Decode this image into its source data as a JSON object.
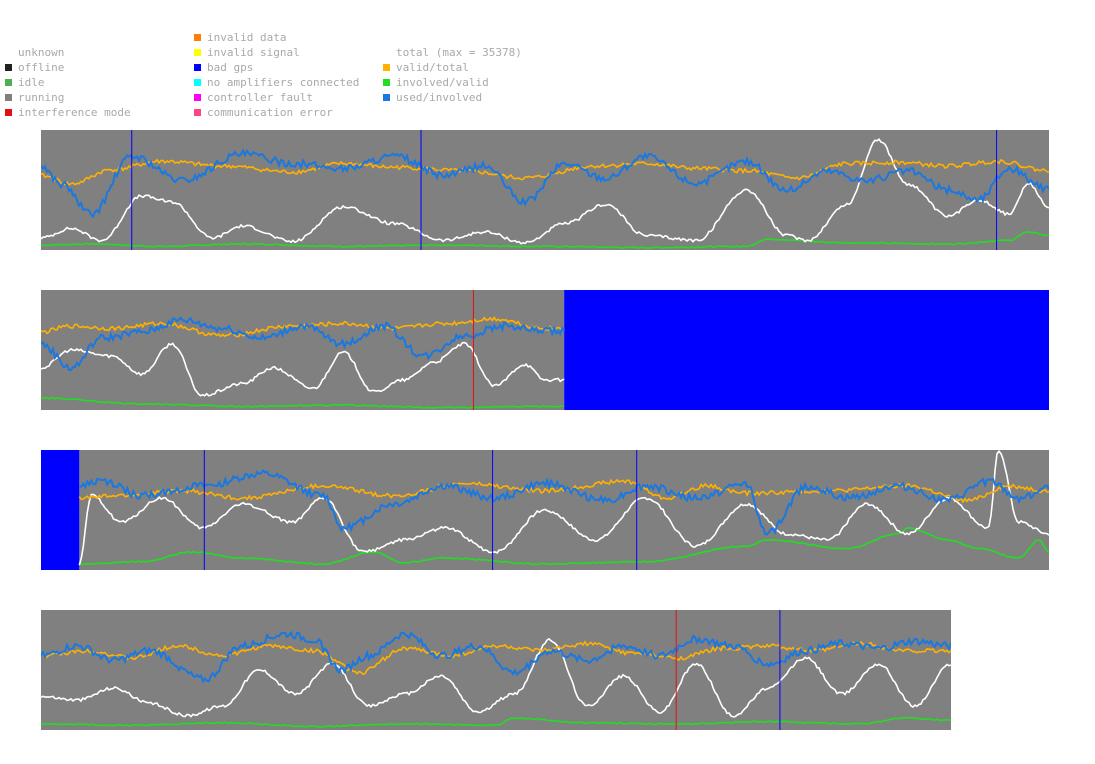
{
  "legend": {
    "status": [
      {
        "label": "unknown",
        "color": ""
      },
      {
        "label": "offline",
        "color": "#222222"
      },
      {
        "label": "idle",
        "color": "#4caf50"
      },
      {
        "label": "running",
        "color": "#808080"
      },
      {
        "label": "interference mode",
        "color": "#e01010"
      }
    ],
    "errors": [
      {
        "label": "invalid data",
        "color": "#ff8000"
      },
      {
        "label": "invalid signal",
        "color": "#ffff00"
      },
      {
        "label": "bad gps",
        "color": "#0000ff"
      },
      {
        "label": "no amplifiers connected",
        "color": "#00ffff"
      },
      {
        "label": "controller fault",
        "color": "#ff00ff"
      },
      {
        "label": "communication error",
        "color": "#ff4488"
      }
    ],
    "metrics": [
      {
        "label": "total (max = 35378)",
        "color": ""
      },
      {
        "label": "valid/total",
        "color": "#ffb000"
      },
      {
        "label": "involved/valid",
        "color": "#22dd22"
      },
      {
        "label": "used/involved",
        "color": "#1a78e0"
      }
    ]
  },
  "colors": {
    "running": "#808080",
    "bad_gps": "#0000ff",
    "interference": "#e01010",
    "total": "#ffffff",
    "valid_total": "#ffb000",
    "involved_valid": "#22dd22",
    "used_involved": "#1a78e0"
  },
  "chart_data": [
    {
      "type": "line",
      "x_range": [
        0,
        1
      ],
      "y_range": [
        0,
        1
      ],
      "running_span": [
        0,
        1
      ],
      "bad_gps_spans": [],
      "markers": [
        {
          "kind": "bad_gps",
          "x": 0.09
        },
        {
          "kind": "bad_gps",
          "x": 0.377
        },
        {
          "kind": "bad_gps",
          "x": 0.948
        }
      ],
      "series": {
        "valid_total": {
          "x": [
            0,
            0.03,
            0.07,
            0.12,
            0.18,
            0.25,
            0.3,
            0.35,
            0.42,
            0.48,
            0.55,
            0.6,
            0.65,
            0.7,
            0.75,
            0.8,
            0.85,
            0.9,
            0.95,
            1.0
          ],
          "y": [
            0.62,
            0.55,
            0.67,
            0.74,
            0.7,
            0.65,
            0.72,
            0.69,
            0.66,
            0.6,
            0.7,
            0.72,
            0.68,
            0.66,
            0.6,
            0.72,
            0.73,
            0.7,
            0.74,
            0.66
          ]
        },
        "used_involved": {
          "x": [
            0,
            0.02,
            0.05,
            0.09,
            0.14,
            0.2,
            0.25,
            0.3,
            0.35,
            0.4,
            0.44,
            0.48,
            0.52,
            0.56,
            0.6,
            0.65,
            0.7,
            0.74,
            0.78,
            0.82,
            0.86,
            0.9,
            0.93,
            0.96,
            1.0
          ],
          "y": [
            0.7,
            0.55,
            0.3,
            0.78,
            0.58,
            0.8,
            0.72,
            0.68,
            0.78,
            0.62,
            0.7,
            0.4,
            0.72,
            0.6,
            0.78,
            0.56,
            0.74,
            0.5,
            0.66,
            0.58,
            0.66,
            0.5,
            0.42,
            0.68,
            0.5
          ]
        },
        "total": {
          "x": [
            0,
            0.03,
            0.06,
            0.1,
            0.13,
            0.17,
            0.2,
            0.25,
            0.3,
            0.35,
            0.4,
            0.44,
            0.48,
            0.52,
            0.56,
            0.6,
            0.65,
            0.7,
            0.74,
            0.76,
            0.8,
            0.83,
            0.86,
            0.9,
            0.93,
            0.96,
            0.98,
            1.0
          ],
          "y": [
            0.1,
            0.18,
            0.08,
            0.45,
            0.4,
            0.1,
            0.2,
            0.07,
            0.36,
            0.22,
            0.08,
            0.15,
            0.06,
            0.22,
            0.38,
            0.12,
            0.08,
            0.5,
            0.12,
            0.08,
            0.38,
            0.92,
            0.55,
            0.28,
            0.42,
            0.3,
            0.55,
            0.35
          ]
        },
        "involved_valid": {
          "x": [
            0,
            0.05,
            0.12,
            0.2,
            0.3,
            0.4,
            0.5,
            0.6,
            0.7,
            0.72,
            0.8,
            0.9,
            0.96,
            0.98,
            1.0
          ],
          "y": [
            0.04,
            0.05,
            0.03,
            0.05,
            0.03,
            0.04,
            0.03,
            0.02,
            0.03,
            0.09,
            0.06,
            0.05,
            0.08,
            0.15,
            0.12
          ]
        }
      }
    },
    {
      "type": "line",
      "x_range": [
        0,
        1
      ],
      "y_range": [
        0,
        1
      ],
      "running_span": [
        0,
        0.519
      ],
      "bad_gps_spans": [
        [
          0.519,
          1.0
        ]
      ],
      "markers": [
        {
          "kind": "interference",
          "x": 0.429
        }
      ],
      "series": {
        "valid_total": {
          "x": [
            0,
            0.03,
            0.07,
            0.12,
            0.18,
            0.25,
            0.3,
            0.35,
            0.4,
            0.45,
            0.5,
            0.519
          ],
          "y": [
            0.65,
            0.7,
            0.68,
            0.72,
            0.62,
            0.7,
            0.72,
            0.68,
            0.72,
            0.76,
            0.68,
            0.68
          ]
        },
        "used_involved": {
          "x": [
            0,
            0.03,
            0.06,
            0.1,
            0.14,
            0.18,
            0.22,
            0.26,
            0.3,
            0.34,
            0.38,
            0.42,
            0.46,
            0.5,
            0.519
          ],
          "y": [
            0.55,
            0.35,
            0.6,
            0.65,
            0.75,
            0.68,
            0.6,
            0.7,
            0.55,
            0.7,
            0.45,
            0.62,
            0.7,
            0.66,
            0.66
          ]
        },
        "total": {
          "x": [
            0,
            0.03,
            0.07,
            0.1,
            0.13,
            0.16,
            0.2,
            0.23,
            0.27,
            0.3,
            0.33,
            0.36,
            0.39,
            0.42,
            0.45,
            0.48,
            0.5,
            0.519
          ],
          "y": [
            0.35,
            0.5,
            0.45,
            0.3,
            0.55,
            0.12,
            0.22,
            0.35,
            0.18,
            0.48,
            0.15,
            0.25,
            0.4,
            0.55,
            0.2,
            0.38,
            0.25,
            0.25
          ]
        },
        "involved_valid": {
          "x": [
            0,
            0.1,
            0.2,
            0.3,
            0.4,
            0.5,
            0.519
          ],
          "y": [
            0.1,
            0.05,
            0.03,
            0.04,
            0.02,
            0.03,
            0.03
          ]
        }
      }
    },
    {
      "type": "line",
      "x_range": [
        0,
        1
      ],
      "y_range": [
        0,
        1
      ],
      "running_span": [
        0.038,
        1
      ],
      "bad_gps_spans": [
        [
          0,
          0.038
        ]
      ],
      "markers": [
        {
          "kind": "bad_gps",
          "x": 0.162
        },
        {
          "kind": "bad_gps",
          "x": 0.448
        },
        {
          "kind": "bad_gps",
          "x": 0.591
        }
      ],
      "series": {
        "valid_total": {
          "x": [
            0.038,
            0.08,
            0.14,
            0.2,
            0.28,
            0.35,
            0.42,
            0.5,
            0.58,
            0.62,
            0.66,
            0.7,
            0.78,
            0.86,
            0.92,
            0.96,
            1.0
          ],
          "y": [
            0.6,
            0.62,
            0.66,
            0.6,
            0.7,
            0.62,
            0.72,
            0.66,
            0.74,
            0.6,
            0.7,
            0.64,
            0.66,
            0.7,
            0.58,
            0.7,
            0.66
          ]
        },
        "used_involved": {
          "x": [
            0.038,
            0.06,
            0.1,
            0.16,
            0.22,
            0.28,
            0.3,
            0.35,
            0.4,
            0.45,
            0.5,
            0.56,
            0.6,
            0.65,
            0.7,
            0.72,
            0.76,
            0.8,
            0.85,
            0.9,
            0.94,
            0.97,
            1.0
          ],
          "y": [
            0.7,
            0.74,
            0.62,
            0.7,
            0.8,
            0.62,
            0.35,
            0.55,
            0.7,
            0.6,
            0.72,
            0.58,
            0.7,
            0.6,
            0.72,
            0.3,
            0.7,
            0.6,
            0.7,
            0.58,
            0.74,
            0.6,
            0.68
          ]
        },
        "total": {
          "x": [
            0.038,
            0.05,
            0.08,
            0.12,
            0.16,
            0.2,
            0.25,
            0.28,
            0.32,
            0.36,
            0.4,
            0.45,
            0.5,
            0.55,
            0.6,
            0.65,
            0.7,
            0.74,
            0.78,
            0.82,
            0.86,
            0.9,
            0.94,
            0.95,
            0.97,
            1.0
          ],
          "y": [
            0.05,
            0.62,
            0.4,
            0.6,
            0.35,
            0.55,
            0.4,
            0.6,
            0.15,
            0.25,
            0.35,
            0.15,
            0.5,
            0.25,
            0.6,
            0.2,
            0.55,
            0.3,
            0.25,
            0.55,
            0.3,
            0.6,
            0.35,
            1.0,
            0.4,
            0.3
          ]
        },
        "involved_valid": {
          "x": [
            0.038,
            0.1,
            0.15,
            0.2,
            0.28,
            0.33,
            0.36,
            0.4,
            0.5,
            0.6,
            0.7,
            0.72,
            0.8,
            0.85,
            0.86,
            0.9,
            0.93,
            0.97,
            0.99,
            1.0
          ],
          "y": [
            0.05,
            0.07,
            0.15,
            0.1,
            0.05,
            0.15,
            0.06,
            0.1,
            0.05,
            0.07,
            0.2,
            0.25,
            0.18,
            0.3,
            0.35,
            0.25,
            0.18,
            0.1,
            0.25,
            0.15
          ]
        }
      }
    },
    {
      "type": "line",
      "x_range": [
        0,
        1
      ],
      "y_range": [
        0,
        1
      ],
      "running_span": [
        0,
        1
      ],
      "bad_gps_spans": [],
      "markers": [
        {
          "kind": "interference",
          "x": 0.698
        },
        {
          "kind": "bad_gps",
          "x": 0.812
        }
      ],
      "series": {
        "valid_total": {
          "x": [
            0,
            0.05,
            0.1,
            0.15,
            0.2,
            0.25,
            0.3,
            0.35,
            0.4,
            0.45,
            0.5,
            0.55,
            0.6,
            0.65,
            0.7,
            0.75,
            0.8,
            0.85,
            0.9,
            0.95,
            1.0
          ],
          "y": [
            0.62,
            0.66,
            0.6,
            0.7,
            0.62,
            0.7,
            0.66,
            0.48,
            0.68,
            0.62,
            0.7,
            0.66,
            0.72,
            0.64,
            0.6,
            0.68,
            0.7,
            0.66,
            0.72,
            0.66,
            0.66
          ]
        },
        "used_involved": {
          "x": [
            0,
            0.04,
            0.08,
            0.12,
            0.18,
            0.22,
            0.27,
            0.3,
            0.33,
            0.36,
            0.4,
            0.44,
            0.48,
            0.52,
            0.56,
            0.6,
            0.64,
            0.68,
            0.72,
            0.76,
            0.8,
            0.84,
            0.88,
            0.92,
            0.96,
            1.0
          ],
          "y": [
            0.62,
            0.7,
            0.58,
            0.66,
            0.42,
            0.7,
            0.8,
            0.75,
            0.5,
            0.62,
            0.8,
            0.62,
            0.7,
            0.48,
            0.66,
            0.58,
            0.7,
            0.62,
            0.76,
            0.7,
            0.55,
            0.66,
            0.72,
            0.68,
            0.74,
            0.7
          ]
        },
        "total": {
          "x": [
            0,
            0.04,
            0.08,
            0.12,
            0.16,
            0.2,
            0.24,
            0.28,
            0.32,
            0.36,
            0.4,
            0.44,
            0.48,
            0.52,
            0.56,
            0.6,
            0.64,
            0.68,
            0.72,
            0.76,
            0.8,
            0.84,
            0.88,
            0.92,
            0.96,
            1.0
          ],
          "y": [
            0.28,
            0.25,
            0.35,
            0.22,
            0.12,
            0.2,
            0.5,
            0.3,
            0.55,
            0.2,
            0.3,
            0.45,
            0.15,
            0.3,
            0.75,
            0.2,
            0.45,
            0.15,
            0.55,
            0.12,
            0.35,
            0.6,
            0.3,
            0.55,
            0.2,
            0.55
          ]
        },
        "involved_valid": {
          "x": [
            0,
            0.1,
            0.2,
            0.3,
            0.4,
            0.5,
            0.52,
            0.6,
            0.7,
            0.8,
            0.9,
            0.95,
            1.0
          ],
          "y": [
            0.05,
            0.04,
            0.06,
            0.03,
            0.05,
            0.04,
            0.1,
            0.06,
            0.05,
            0.07,
            0.05,
            0.1,
            0.08
          ]
        }
      }
    }
  ]
}
